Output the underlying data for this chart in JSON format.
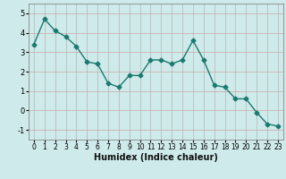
{
  "x": [
    0,
    1,
    2,
    3,
    4,
    5,
    6,
    7,
    8,
    9,
    10,
    11,
    12,
    13,
    14,
    15,
    16,
    17,
    18,
    19,
    20,
    21,
    22,
    23
  ],
  "y": [
    3.4,
    4.7,
    4.1,
    3.8,
    3.3,
    2.5,
    2.4,
    1.4,
    1.2,
    1.8,
    1.8,
    2.6,
    2.6,
    2.4,
    2.6,
    3.6,
    2.6,
    1.3,
    1.2,
    0.6,
    0.6,
    -0.1,
    -0.7,
    -0.8
  ],
  "line_color": "#1a7a6e",
  "marker": "D",
  "markersize": 2.5,
  "linewidth": 1.0,
  "xlabel": "Humidex (Indice chaleur)",
  "xlabel_fontsize": 7,
  "bg_color": "#ceeaea",
  "grid_color": "#aaaaaa",
  "hgrid_color": "#cc9999",
  "ylim": [
    -1.5,
    5.5
  ],
  "xlim": [
    -0.5,
    23.5
  ],
  "yticks": [
    -1,
    0,
    1,
    2,
    3,
    4,
    5
  ],
  "xticks": [
    0,
    1,
    2,
    3,
    4,
    5,
    6,
    7,
    8,
    9,
    10,
    11,
    12,
    13,
    14,
    15,
    16,
    17,
    18,
    19,
    20,
    21,
    22,
    23
  ],
  "tick_fontsize": 5.5
}
